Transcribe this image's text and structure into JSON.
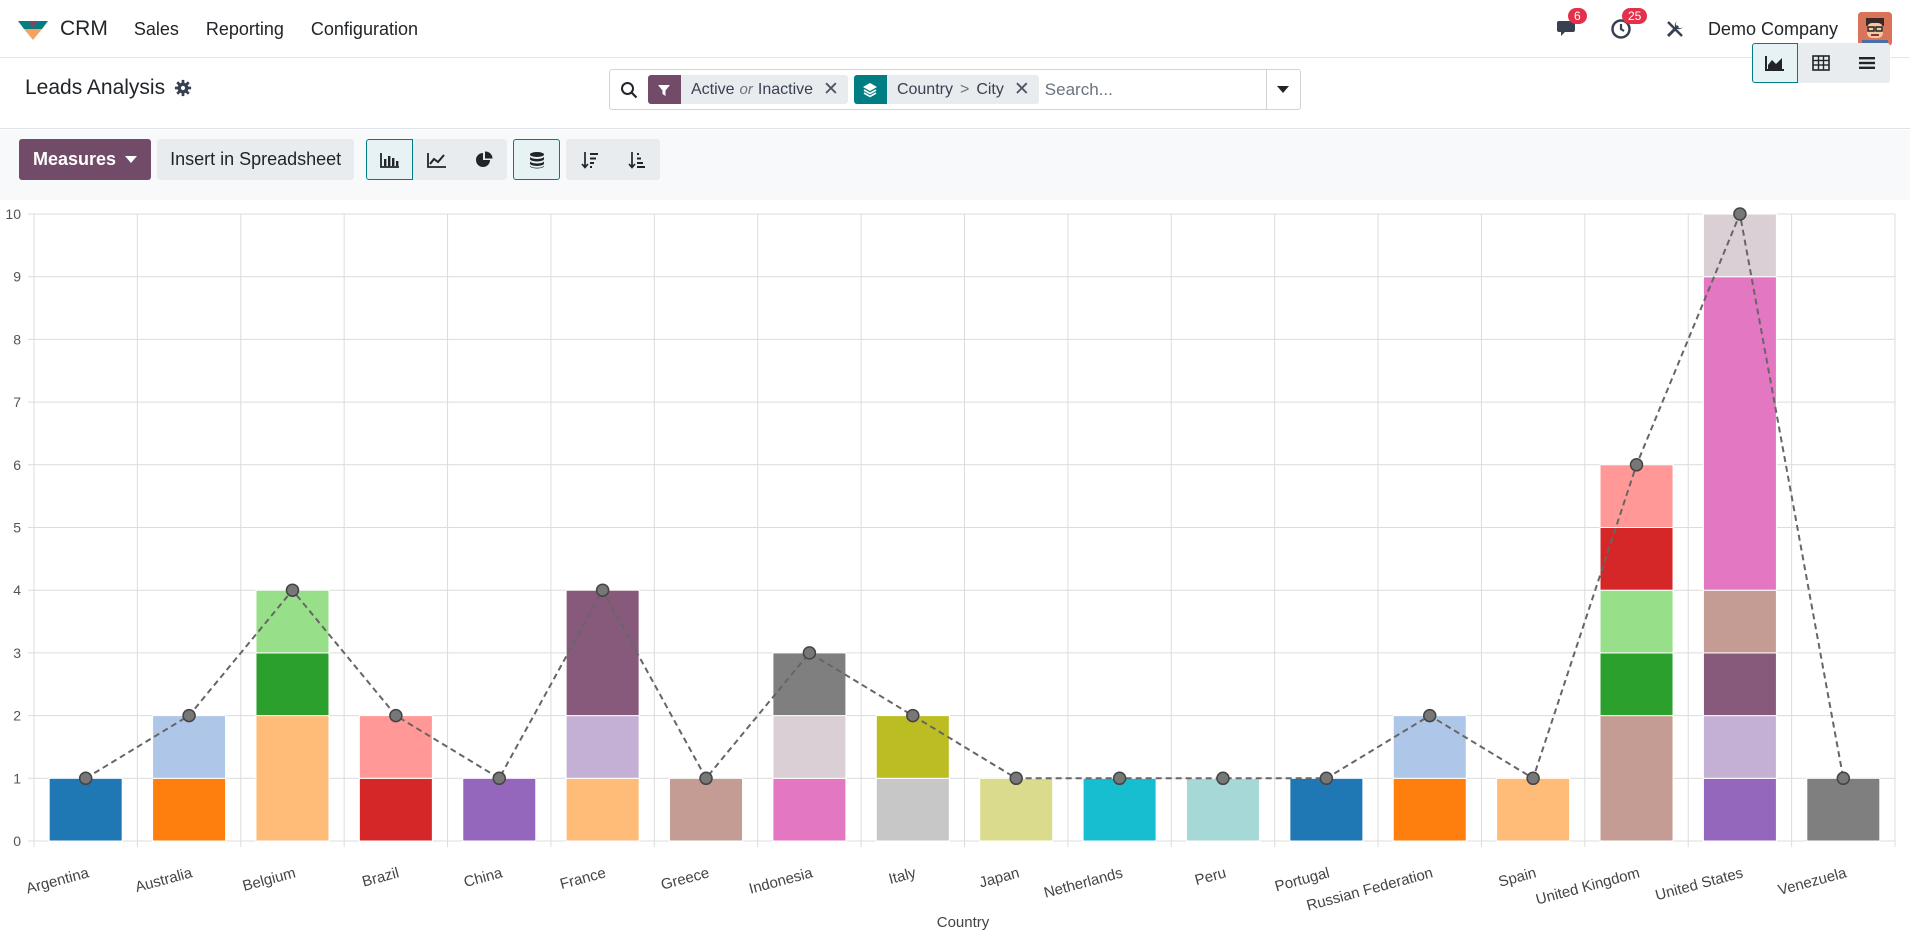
{
  "navbar": {
    "app_name": "CRM",
    "menu": [
      "Sales",
      "Reporting",
      "Configuration"
    ],
    "messages_badge": "6",
    "activities_badge": "25",
    "company": "Demo Company"
  },
  "control": {
    "title": "Leads Analysis",
    "facets": [
      {
        "values": [
          "Active",
          "Inactive"
        ],
        "separator": "or",
        "color": "#714b67"
      },
      {
        "values": [
          "Country",
          "City"
        ],
        "separator": ">",
        "color": "#017e84"
      }
    ],
    "search_placeholder": "Search..."
  },
  "toolbar": {
    "measures_label": "Measures",
    "insert_label": "Insert in Spreadsheet"
  },
  "chart_data": {
    "type": "bar",
    "stacked": true,
    "cumulative_line": true,
    "xlabel": "Country",
    "ylim": [
      0,
      10
    ],
    "yticks": [
      0,
      1,
      2,
      3,
      4,
      5,
      6,
      7,
      8,
      9,
      10
    ],
    "categories": [
      "Argentina",
      "Australia",
      "Belgium",
      "Brazil",
      "China",
      "France",
      "Greece",
      "Indonesia",
      "Italy",
      "Japan",
      "Netherlands",
      "Peru",
      "Portugal",
      "Russian Federation",
      "Spain",
      "United Kingdom",
      "United States",
      "Venezuela"
    ],
    "stacks": [
      [
        {
          "v": 1,
          "c": "#1f77b4"
        }
      ],
      [
        {
          "v": 1,
          "c": "#ff7f0e"
        },
        {
          "v": 1,
          "c": "#aec7e8"
        }
      ],
      [
        {
          "v": 2,
          "c": "#ffbb78"
        },
        {
          "v": 1,
          "c": "#2ca02c"
        },
        {
          "v": 1,
          "c": "#98df8a"
        }
      ],
      [
        {
          "v": 1,
          "c": "#d62728"
        },
        {
          "v": 1,
          "c": "#ff9896"
        }
      ],
      [
        {
          "v": 1,
          "c": "#9467bd"
        }
      ],
      [
        {
          "v": 1,
          "c": "#ffbb78"
        },
        {
          "v": 1,
          "c": "#c5b0d5"
        },
        {
          "v": 2,
          "c": "#875a7b"
        }
      ],
      [
        {
          "v": 1,
          "c": "#c49c94"
        }
      ],
      [
        {
          "v": 1,
          "c": "#e377c2"
        },
        {
          "v": 1,
          "c": "#dbcfd6"
        },
        {
          "v": 1,
          "c": "#7f7f7f"
        }
      ],
      [
        {
          "v": 1,
          "c": "#c7c7c7"
        },
        {
          "v": 1,
          "c": "#bcbd22"
        }
      ],
      [
        {
          "v": 1,
          "c": "#dbdb8d"
        }
      ],
      [
        {
          "v": 1,
          "c": "#17becf"
        }
      ],
      [
        {
          "v": 1,
          "c": "#a6d8d7"
        }
      ],
      [
        {
          "v": 1,
          "c": "#1f77b4"
        }
      ],
      [
        {
          "v": 1,
          "c": "#ff7f0e"
        },
        {
          "v": 1,
          "c": "#aec7e8"
        }
      ],
      [
        {
          "v": 1,
          "c": "#ffbb78"
        }
      ],
      [
        {
          "v": 2,
          "c": "#c49c94"
        },
        {
          "v": 1,
          "c": "#2ca02c"
        },
        {
          "v": 1,
          "c": "#98df8a"
        },
        {
          "v": 1,
          "c": "#d62728"
        },
        {
          "v": 1,
          "c": "#ff9896"
        }
      ],
      [
        {
          "v": 1,
          "c": "#9467bd"
        },
        {
          "v": 1,
          "c": "#c5b0d5"
        },
        {
          "v": 1,
          "c": "#875a7b"
        },
        {
          "v": 1,
          "c": "#c49c94"
        },
        {
          "v": 5,
          "c": "#e377c2"
        },
        {
          "v": 1,
          "c": "#dbcfd6"
        }
      ],
      [
        {
          "v": 1,
          "c": "#7f7f7f"
        }
      ]
    ],
    "totals": [
      1,
      2,
      4,
      2,
      1,
      4,
      1,
      3,
      2,
      1,
      1,
      1,
      1,
      2,
      1,
      6,
      10,
      1
    ]
  }
}
